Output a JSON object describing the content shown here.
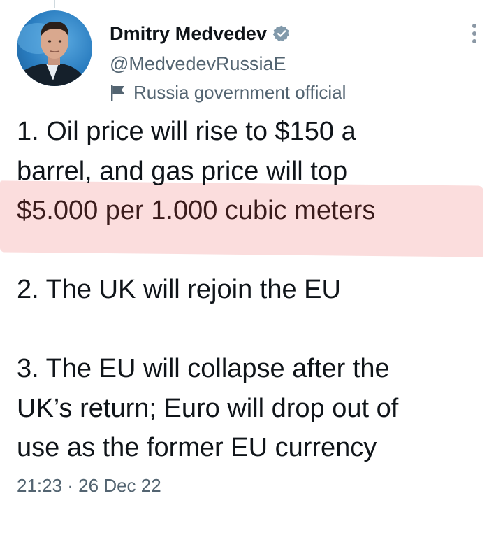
{
  "author": {
    "display_name": "Dmitry Medvedev",
    "handle": "@MedvedevRussiaE",
    "label": "Russia government official",
    "verified": true,
    "avatar_icon": "profile-photo",
    "label_icon": "flag-icon"
  },
  "tweet": {
    "lines": [
      "1.  Oil price will rise to $150 a",
      "barrel, and gas price will top",
      "$5.000 per 1.000 cubic meters",
      "2. The UK will rejoin the EU",
      "3. The EU will collapse after the",
      "UK’s return; Euro will drop out of",
      "use as the former EU currency"
    ],
    "timestamp": "21:23 · 26 Dec 22"
  },
  "colors": {
    "text": "#0f1419",
    "secondary": "#536471",
    "verified": "#829aab",
    "highlight": "#fbd9d9"
  }
}
